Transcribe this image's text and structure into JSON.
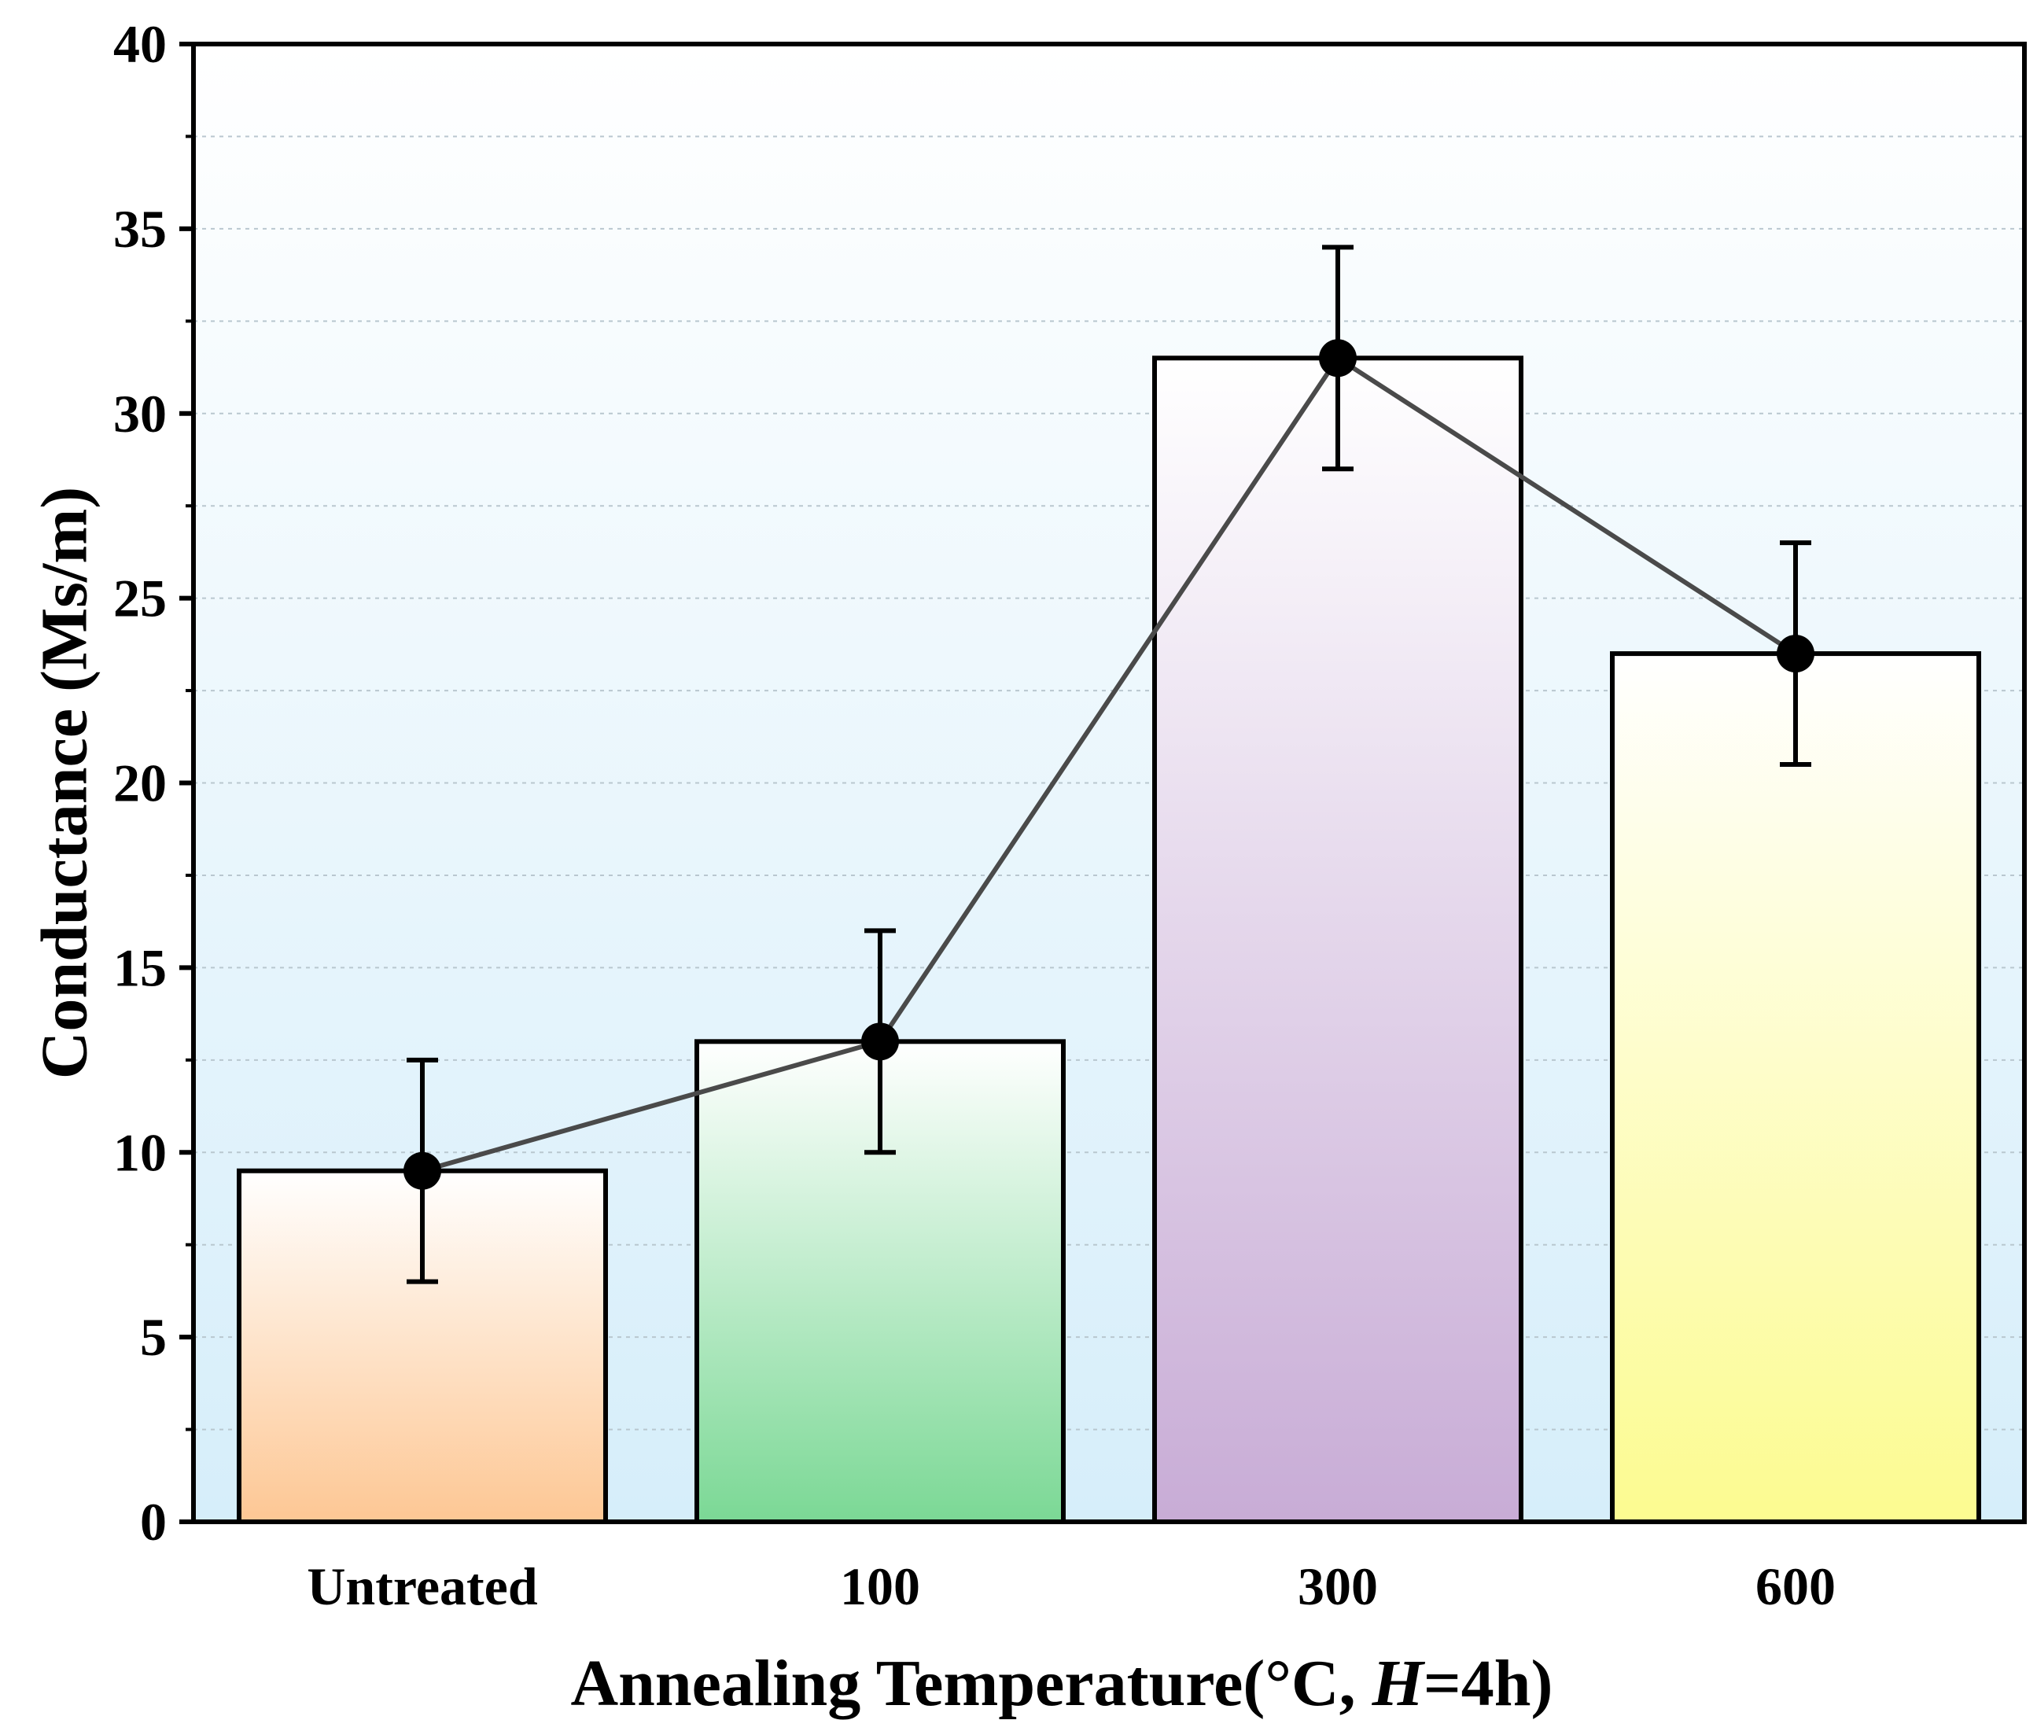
{
  "chart_data": {
    "type": "bar",
    "categories": [
      "Untreated",
      "100",
      "300",
      "600"
    ],
    "values": [
      9.5,
      13.0,
      31.5,
      23.5
    ],
    "errors": [
      3.0,
      3.0,
      3.0,
      3.0
    ],
    "overlay": {
      "type": "line",
      "values": [
        9.5,
        13.0,
        31.5,
        23.5
      ],
      "marker": "circle"
    },
    "title": "",
    "xlabel": {
      "main": "Annealing Temperature(°C, ",
      "italic": "H",
      "tail": "=4h)"
    },
    "ylabel": "Conductance (Ms/m)",
    "ylim": [
      0,
      40
    ],
    "yticks": [
      "0",
      "5",
      "10",
      "15",
      "20",
      "25",
      "30",
      "35",
      "40"
    ],
    "minor_ystep": 2.5,
    "grid": true,
    "colors": {
      "background_top": "#ffffff",
      "background_bottom": "#d6eefa",
      "bar_fills": [
        "#fdc794",
        "#7bd895",
        "#c8acd6",
        "#fcfb90"
      ],
      "bar_top": "#ffffff",
      "line": "#4a4a4a",
      "marker": "#000000",
      "axis": "#000000",
      "grid": "#b9c7cf"
    }
  }
}
